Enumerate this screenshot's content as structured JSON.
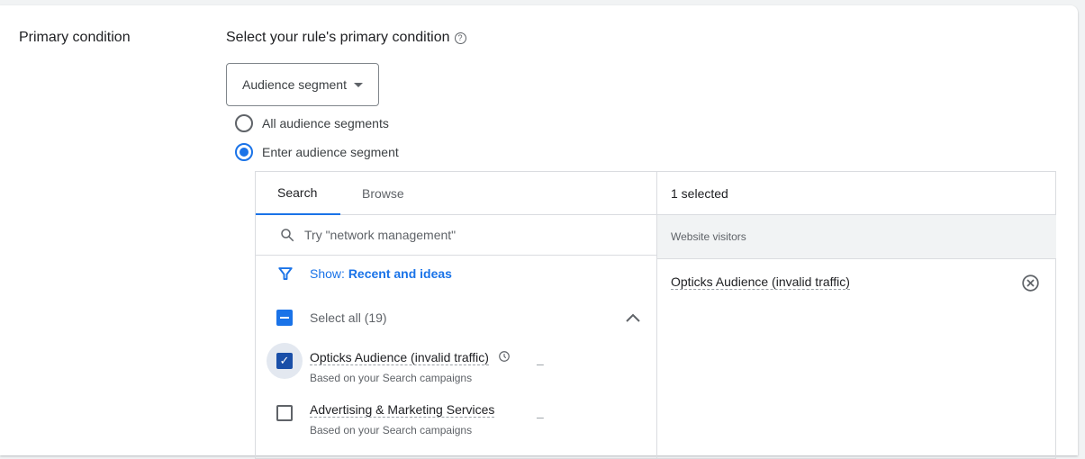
{
  "section_label": "Primary condition",
  "heading": "Select your rule's primary condition",
  "dropdown": {
    "value": "Audience segment"
  },
  "radios": [
    {
      "label": "All audience segments",
      "selected": false
    },
    {
      "label": "Enter audience segment",
      "selected": true
    }
  ],
  "tabs": [
    {
      "label": "Search",
      "active": true
    },
    {
      "label": "Browse",
      "active": false
    }
  ],
  "search": {
    "placeholder": "Try \"network management\""
  },
  "filter": {
    "prefix": "Show:",
    "value": "Recent and ideas"
  },
  "select_all": "Select all (19)",
  "items": [
    {
      "title": "Opticks Audience (invalid traffic)",
      "subtitle": "Based on your Search campaigns",
      "checked": true,
      "dash": "–"
    },
    {
      "title": "Advertising & Marketing Services",
      "subtitle": "Based on your Search campaigns",
      "checked": false,
      "dash": "–"
    }
  ],
  "selected": {
    "count_label": "1 selected",
    "group": "Website visitors",
    "items": [
      "Opticks Audience (invalid traffic)"
    ]
  },
  "colors": {
    "accent": "#1a73e8"
  }
}
